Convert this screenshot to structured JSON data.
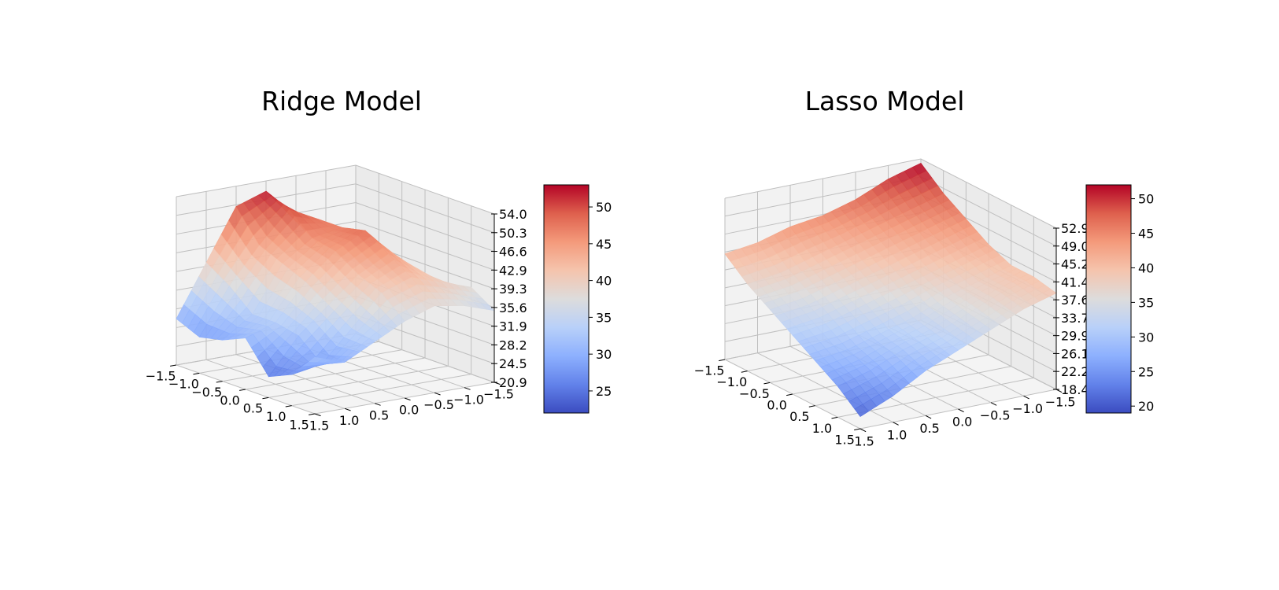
{
  "chart_data": [
    {
      "type": "surface3d",
      "title": "Ridge Model",
      "colormap": "coolwarm",
      "x_ticks": [
        "1.5",
        "1.0",
        "0.5",
        "0.0",
        "−0.5",
        "−1.0",
        "−1.5"
      ],
      "y_ticks": [
        "1.5",
        "1.0",
        "0.5",
        "0.0",
        "−0.5",
        "−1.0",
        "−1.5"
      ],
      "z_ticks": [
        "20.9",
        "24.5",
        "28.2",
        "31.9",
        "35.6",
        "39.3",
        "42.9",
        "46.6",
        "50.3",
        "54.0"
      ],
      "zlim": [
        20.9,
        54.0
      ],
      "colorbar": {
        "min": 22,
        "max": 53,
        "ticks": [
          "25",
          "30",
          "35",
          "40",
          "45",
          "50"
        ],
        "tick_values": [
          25,
          30,
          35,
          40,
          45,
          50
        ]
      },
      "x": [
        -1.5,
        -1.0,
        -0.5,
        0.0,
        0.5,
        1.0,
        1.5
      ],
      "y": [
        -1.5,
        -1.0,
        -0.5,
        0.0,
        0.5,
        1.0,
        1.5
      ],
      "z": [
        [
          37,
          38,
          45,
          52,
          50,
          40,
          30
        ],
        [
          35,
          38,
          47,
          50,
          44,
          37,
          28
        ],
        [
          34,
          40,
          47,
          46,
          42,
          33,
          29
        ],
        [
          35,
          42,
          48,
          45,
          40,
          33,
          31
        ],
        [
          36,
          41,
          45,
          42,
          37,
          32,
          25
        ],
        [
          38,
          40,
          42,
          40,
          34,
          28,
          27
        ],
        [
          35,
          37,
          38,
          36,
          33,
          30,
          32
        ]
      ]
    },
    {
      "type": "surface3d",
      "title": "Lasso Model",
      "colormap": "coolwarm",
      "x_ticks": [
        "1.5",
        "1.0",
        "0.5",
        "0.0",
        "−0.5",
        "−1.0",
        "−1.5"
      ],
      "y_ticks": [
        "1.5",
        "1.0",
        "0.5",
        "0.0",
        "−0.5",
        "−1.0",
        "−1.5"
      ],
      "z_ticks": [
        "18.4",
        "22.2",
        "26.1",
        "29.9",
        "33.7",
        "37.6",
        "41.4",
        "45.2",
        "49.0",
        "52.9"
      ],
      "zlim": [
        18.4,
        52.9
      ],
      "colorbar": {
        "min": 19,
        "max": 52,
        "ticks": [
          "20",
          "25",
          "30",
          "35",
          "40",
          "45",
          "50"
        ],
        "tick_values": [
          20,
          25,
          30,
          35,
          40,
          45,
          50
        ]
      },
      "x": [
        -1.5,
        -1.0,
        -0.5,
        0.0,
        0.5,
        1.0,
        1.5
      ],
      "y": [
        -1.5,
        -1.0,
        -0.5,
        0.0,
        0.5,
        1.0,
        1.5
      ],
      "z": [
        [
          52,
          50,
          47,
          45,
          44,
          42,
          41
        ],
        [
          48,
          46,
          44,
          42,
          40,
          38,
          37
        ],
        [
          45,
          43,
          41,
          39,
          37,
          35,
          34
        ],
        [
          42,
          40,
          38,
          36,
          34,
          32,
          31
        ],
        [
          40,
          38,
          36,
          33,
          31,
          29,
          28
        ],
        [
          40,
          38,
          35,
          32,
          30,
          27,
          25
        ],
        [
          39,
          37,
          34,
          31,
          28,
          24,
          21
        ]
      ]
    }
  ]
}
